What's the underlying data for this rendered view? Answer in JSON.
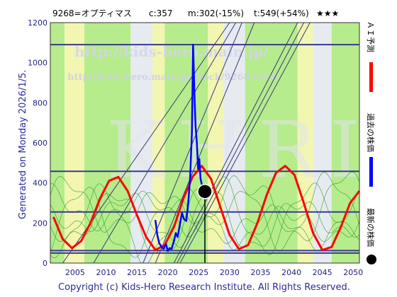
{
  "header": {
    "code_name": "9268=オプティマス",
    "current": "c:357",
    "min_stat": "m:302(-15%)",
    "target_stat": "t:549(+54%)",
    "stars": "★★★"
  },
  "side_text": "Generated on Monday 2026/1/5.",
  "footer": "Copyright (c) Kids-Hero Research Institute. All Rights Reserved.",
  "watermark": {
    "url": "http://kids-hero.main.jp/",
    "page_url": "http://kids-hero.main.jp/stock/9268.html",
    "logo": "KHRI"
  },
  "legend": {
    "ai_forecast": "ＡＩ予測",
    "past_price": "過去の株価",
    "latest_price": "最新の株価"
  },
  "colors": {
    "forecast": "#ff0000",
    "past": "#0000ff",
    "latest": "#000000",
    "band_green": "#b6ec8c",
    "band_yellow": "#f2f6b0",
    "band_gray": "#e6ebf0",
    "hlines": "#3a3a8a"
  },
  "chart_data": {
    "type": "line",
    "xlim": [
      2001,
      2051
    ],
    "ylim": [
      0,
      1200
    ],
    "x_ticks": [
      2005,
      2010,
      2015,
      2020,
      2025,
      2030,
      2035,
      2040,
      2045,
      2050
    ],
    "y_ticks": [
      0,
      200,
      400,
      600,
      800,
      1000,
      1200
    ],
    "horizontal_levels": [
      1090,
      458,
      255,
      62,
      50
    ],
    "latest_point": {
      "x": 2026.0,
      "y": 357
    },
    "series": [
      {
        "name": "ＡＩ予測",
        "x": [
          2001.5,
          2003,
          2004.5,
          2006,
          2007.5,
          2009,
          2010.5,
          2012,
          2013.5,
          2015,
          2016.5,
          2018,
          2019.5,
          2021,
          2022.5,
          2024,
          2025.5,
          2027,
          2028.5,
          2030,
          2031.5,
          2033,
          2034.5,
          2036,
          2037.5,
          2039,
          2040.5,
          2042,
          2043.5,
          2045,
          2046.5,
          2048,
          2049.5,
          2051
        ],
        "y": [
          230,
          120,
          75,
          110,
          200,
          320,
          410,
          430,
          360,
          240,
          130,
          65,
          90,
          180,
          320,
          430,
          485,
          420,
          280,
          140,
          70,
          90,
          200,
          340,
          450,
          485,
          440,
          300,
          150,
          65,
          80,
          180,
          300,
          360
        ]
      },
      {
        "name": "過去の株価",
        "x": [
          2018.0,
          2018.3,
          2018.6,
          2019.0,
          2019.3,
          2019.7,
          2020.0,
          2020.3,
          2020.6,
          2021.0,
          2021.3,
          2021.6,
          2022.0,
          2022.3,
          2022.6,
          2023.0,
          2023.3,
          2023.6,
          2023.9,
          2024.1,
          2024.3,
          2024.5,
          2024.7,
          2024.9,
          2025.1,
          2025.3,
          2025.6,
          2025.9,
          2026.0
        ],
        "y": [
          215,
          140,
          100,
          80,
          70,
          95,
          60,
          75,
          70,
          110,
          150,
          130,
          200,
          250,
          220,
          210,
          300,
          420,
          650,
          1090,
          850,
          680,
          600,
          470,
          520,
          420,
          380,
          340,
          357
        ]
      }
    ]
  }
}
